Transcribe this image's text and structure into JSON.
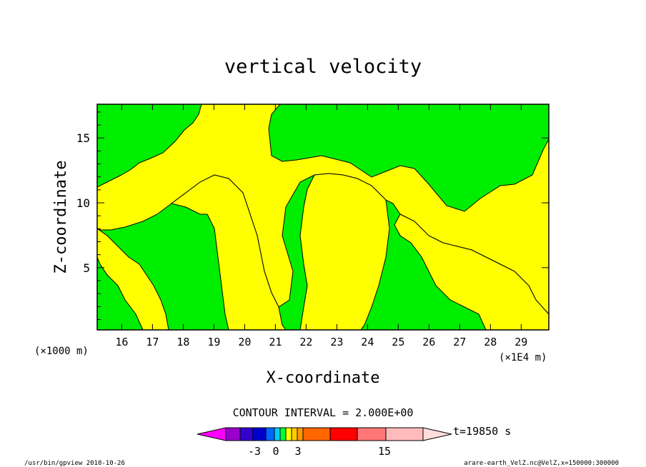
{
  "chart_data": {
    "type": "heatmap",
    "title": "vertical velocity",
    "xlabel": "X-coordinate",
    "ylabel": "Z-coordinate",
    "x_unit_left": "(×1000 m)",
    "x_unit_right": "(×1E4 m)",
    "xlim": [
      15.2,
      29.9
    ],
    "ylim": [
      0.2,
      17.6
    ],
    "x_ticks": [
      "16",
      "17",
      "18",
      "19",
      "20",
      "21",
      "22",
      "23",
      "24",
      "25",
      "26",
      "27",
      "28",
      "29"
    ],
    "y_ticks": [
      "5",
      "10",
      "15"
    ],
    "contour_interval_label": "CONTOUR INTERVAL = 2.000E+00",
    "colorbar_labels": [
      "-3",
      "0",
      "3",
      "15"
    ],
    "colorbar_colors": [
      "#ff00ff",
      "#9900cc",
      "#3300cc",
      "#0000cc",
      "#0066ff",
      "#00ccff",
      "#00ff33",
      "#ffff00",
      "#ffcc00",
      "#ff9900",
      "#ff6600",
      "#ff0000",
      "#ff7777",
      "#ffbbbb",
      "#ffdddd"
    ],
    "time_label": "t=19850  s",
    "field_colors": {
      "background": "#00ee00",
      "updraft": "#ffff00"
    },
    "regions": [
      {
        "name": "upper-yellow-band",
        "value": "0 to 2"
      },
      {
        "name": "center-column",
        "value": "0 to 2"
      },
      {
        "name": "right-yellow-region",
        "value": "0 to 2"
      }
    ]
  },
  "footer": {
    "left": "/usr/bin/gpview  2010-10-26",
    "right": "arare-earth_VelZ.nc@VelZ,x=150000:300000"
  }
}
